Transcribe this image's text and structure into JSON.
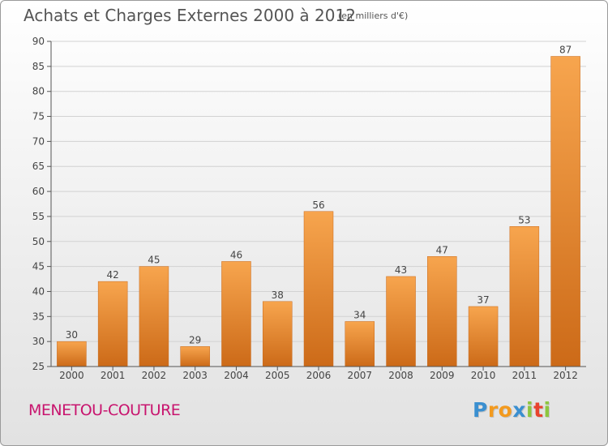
{
  "header": {
    "title": "Achats et Charges Externes 2000 à 2012",
    "unit": "(en milliers d'€)"
  },
  "footer": {
    "commune": "MENETOU-COUTURE",
    "logo_text": "Proxiti",
    "logo_letters": [
      "P",
      "r",
      "o",
      "x",
      "i",
      "t",
      "i"
    ],
    "logo_colors": [
      "#3a8fd0",
      "#f39a1e",
      "#f39a1e",
      "#3a8fd0",
      "#8dc63f",
      "#e8432e",
      "#8dc63f"
    ]
  },
  "colors": {
    "bar_light": "#f7a54e",
    "bar_dark": "#cc6a18",
    "commune": "#c8146e"
  },
  "chart_data": {
    "type": "bar",
    "title": "Achats et Charges Externes 2000 à 2012",
    "subtitle": "(en milliers d'€)",
    "categories": [
      "2000",
      "2001",
      "2002",
      "2003",
      "2004",
      "2005",
      "2006",
      "2007",
      "2008",
      "2009",
      "2010",
      "2011",
      "2012"
    ],
    "values": [
      30,
      42,
      45,
      29,
      46,
      38,
      56,
      34,
      43,
      47,
      37,
      53,
      87
    ],
    "ylim": [
      25,
      90
    ],
    "yticks": [
      25,
      30,
      35,
      40,
      45,
      50,
      55,
      60,
      65,
      70,
      75,
      80,
      85,
      90
    ],
    "grid": true,
    "data_labels": true
  }
}
